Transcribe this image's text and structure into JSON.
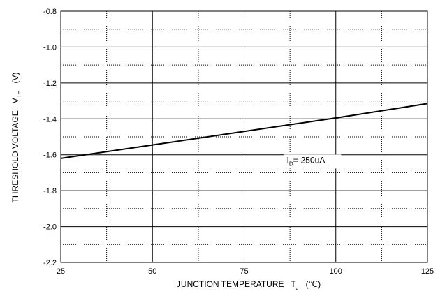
{
  "chart_data": {
    "type": "line",
    "title": "",
    "xlabel": "JUNCTION TEMPERATURE   T",
    "xlabel_sub": "J",
    "xlabel_unit": "(℃)",
    "ylabel": "THRESHOLD VOLTAGE   V",
    "ylabel_sub": "TH",
    "ylabel_unit": "(V)",
    "xlim": [
      25,
      125
    ],
    "ylim": [
      -0.8,
      -2.2
    ],
    "x_ticks": [
      25,
      50,
      75,
      100,
      125
    ],
    "x_tick_labels": [
      "25",
      "50",
      "75",
      "100",
      "125"
    ],
    "y_ticks": [
      -2.2,
      -2.0,
      -1.8,
      -1.6,
      -1.4,
      -1.2,
      -1.0,
      -0.8
    ],
    "y_tick_labels": [
      "-2.2",
      "-2.0",
      "-1.8",
      "-1.6",
      "-1.4",
      "-1.2",
      "-1.0",
      "-0.8"
    ],
    "grid": true,
    "series": [
      {
        "x": [
          25,
          50,
          75,
          100,
          125
        ],
        "y": [
          -1.62,
          -1.545,
          -1.47,
          -1.395,
          -1.315
        ]
      }
    ],
    "annotations": [
      {
        "main": "I",
        "sub": "D",
        "rest": "=-250uA",
        "x": 87,
        "y": -1.63
      }
    ]
  }
}
